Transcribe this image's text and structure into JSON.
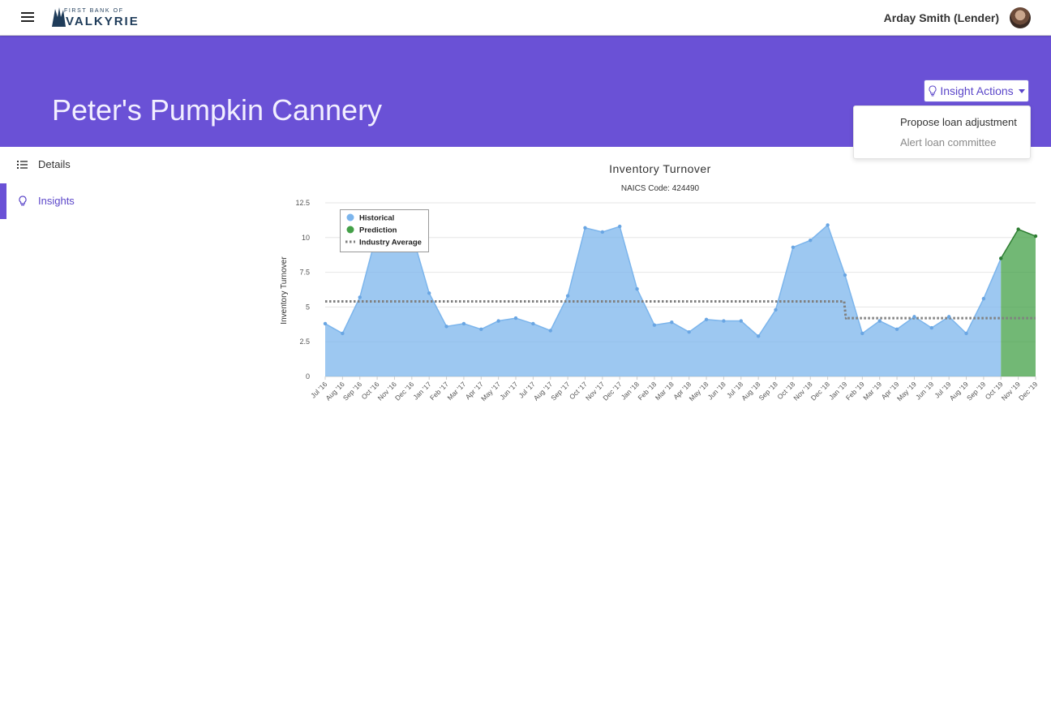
{
  "header": {
    "logo_small": "FIRST BANK OF",
    "logo_big": "VALKYRIE",
    "user_name": "Arday Smith (Lender)",
    "menu_icon": "hamburger-icon",
    "logo_icon": "wing-logo-icon"
  },
  "banner": {
    "title": "Peter's Pumpkin Cannery",
    "color": "#6a51d6"
  },
  "insight_actions": {
    "label": "Insight Actions",
    "icon": "lightbulb-icon",
    "items": [
      "Propose loan adjustment",
      "Alert loan committee"
    ]
  },
  "sidebar": {
    "items": [
      {
        "label": "Details",
        "icon": "list-icon",
        "active": false
      },
      {
        "label": "Insights",
        "icon": "lightbulb-icon",
        "active": true
      }
    ]
  },
  "chart_data": {
    "type": "area",
    "title": "Inventory Turnover",
    "subtitle": "NAICS Code: 424490",
    "ylabel": "Inventory Turnover",
    "xlabel": "",
    "ylim": [
      0,
      12.5
    ],
    "yticks": [
      "0",
      "2.5",
      "5",
      "7.5",
      "10",
      "12.5"
    ],
    "grid": true,
    "legend_position": "top-left",
    "categories": [
      "Jul '16",
      "Aug '16",
      "Sep '16",
      "Oct '16",
      "Nov '16",
      "Dec '16",
      "Jan '17",
      "Feb '17",
      "Mar '17",
      "Apr '17",
      "May '17",
      "Jun '17",
      "Jul '17",
      "Aug '17",
      "Sep '17",
      "Oct '17",
      "Nov '17",
      "Dec '17",
      "Jan '18",
      "Feb '18",
      "Mar '18",
      "Apr '18",
      "May '18",
      "Jun '18",
      "Jul '18",
      "Aug '18",
      "Sep '18",
      "Oct '18",
      "Nov '18",
      "Dec '18",
      "Jan '19",
      "Feb '19",
      "Mar '19",
      "Apr '19",
      "May '19",
      "Jun '19",
      "Jul '19",
      "Aug '19",
      "Sep '19",
      "Oct '19",
      "Nov '19",
      "Dec '19"
    ],
    "series": [
      {
        "name": "Historical",
        "color": "#7cb5ec",
        "values": [
          3.8,
          3.1,
          5.7,
          10.4,
          10.6,
          10.3,
          6.0,
          3.6,
          3.8,
          3.4,
          4.0,
          4.2,
          3.8,
          3.3,
          5.8,
          10.7,
          10.4,
          10.8,
          6.3,
          3.7,
          3.9,
          3.2,
          4.1,
          4.0,
          4.0,
          2.9,
          4.8,
          9.3,
          9.8,
          10.9,
          7.3,
          3.1,
          4.0,
          3.4,
          4.3,
          3.5,
          4.3,
          3.1,
          5.6,
          8.5,
          null,
          null
        ]
      },
      {
        "name": "Prediction",
        "color": "#43a047",
        "values": [
          null,
          null,
          null,
          null,
          null,
          null,
          null,
          null,
          null,
          null,
          null,
          null,
          null,
          null,
          null,
          null,
          null,
          null,
          null,
          null,
          null,
          null,
          null,
          null,
          null,
          null,
          null,
          null,
          null,
          null,
          null,
          null,
          null,
          null,
          null,
          null,
          null,
          null,
          null,
          8.5,
          10.6,
          10.1
        ]
      },
      {
        "name": "Industry Average",
        "color": "#808080",
        "style": "dotted",
        "values": [
          5.4,
          5.4,
          5.4,
          5.4,
          5.4,
          5.4,
          5.4,
          5.4,
          5.4,
          5.4,
          5.4,
          5.4,
          5.4,
          5.4,
          5.4,
          5.4,
          5.4,
          5.4,
          5.4,
          5.4,
          5.4,
          5.4,
          5.4,
          5.4,
          5.4,
          5.4,
          5.4,
          5.4,
          5.4,
          5.4,
          4.2,
          4.2,
          4.2,
          4.2,
          4.2,
          4.2,
          4.2,
          4.2,
          4.2,
          4.2,
          4.2,
          4.2
        ]
      }
    ]
  }
}
